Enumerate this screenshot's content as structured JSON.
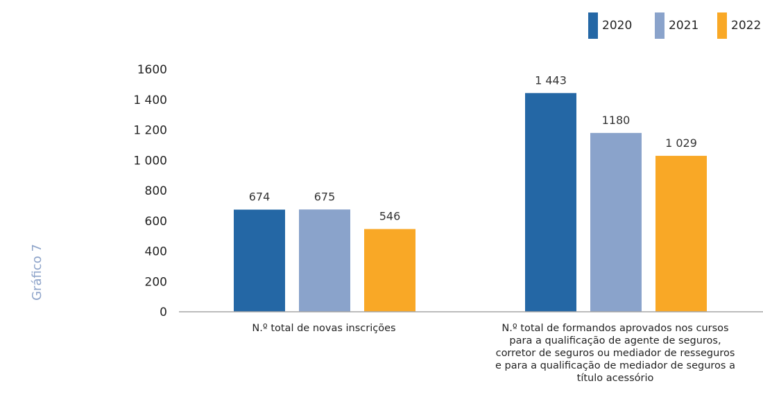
{
  "side_title": "Gráfico 7",
  "chart_data": {
    "type": "bar",
    "categories": [
      [
        "N.º total de novas inscrições"
      ],
      [
        "N.º total de formandos aprovados nos cursos",
        "para a qualificação de agente de seguros,",
        "corretor de seguros ou mediador de resseguros",
        "e para a qualificação de mediador de seguros a",
        "título acessório"
      ]
    ],
    "series": [
      {
        "name": "2020",
        "color": "#2467a5",
        "values": [
          674,
          1443
        ],
        "labels": [
          "674",
          "1 443"
        ]
      },
      {
        "name": "2021",
        "color": "#8aa3cb",
        "values": [
          675,
          1180
        ],
        "labels": [
          "675",
          "1180"
        ]
      },
      {
        "name": "2022",
        "color": "#f9a826",
        "values": [
          546,
          1029
        ],
        "labels": [
          "546",
          "1 029"
        ]
      }
    ],
    "y_ticks": [
      {
        "value": 0,
        "label": "0"
      },
      {
        "value": 200,
        "label": "200"
      },
      {
        "value": 400,
        "label": "400"
      },
      {
        "value": 600,
        "label": "600"
      },
      {
        "value": 800,
        "label": "800"
      },
      {
        "value": 1000,
        "label": "1 000"
      },
      {
        "value": 1200,
        "label": "1 200"
      },
      {
        "value": 1400,
        "label": "1 400"
      },
      {
        "value": 1600,
        "label": "1600"
      }
    ],
    "ylim": [
      0,
      1600
    ],
    "grid": false,
    "legend_position": "top-right"
  }
}
